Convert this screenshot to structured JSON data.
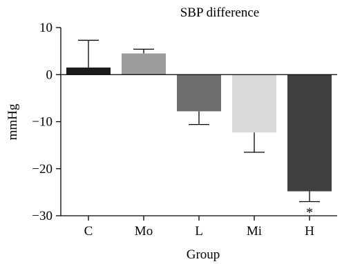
{
  "chart_data": {
    "type": "bar",
    "title": "SBP difference",
    "xlabel": "Group",
    "ylabel": "mmHg",
    "categories": [
      "C",
      "Mo",
      "L",
      "Mi",
      "H"
    ],
    "values": [
      1.5,
      4.5,
      -7.8,
      -12.3,
      -24.8
    ],
    "errors": [
      5.8,
      0.9,
      2.8,
      4.2,
      2.2
    ],
    "colors": [
      "#1a1a1a",
      "#9b9b9b",
      "#6e6e6e",
      "#d9d9d9",
      "#404040"
    ],
    "ylim": [
      -30,
      10
    ],
    "yticks": [
      -30,
      -20,
      -10,
      0,
      10
    ],
    "ytick_labels": [
      "−30",
      "−20",
      "−10",
      "0",
      "10"
    ],
    "annotations": [
      {
        "category": "H",
        "text": "*"
      }
    ],
    "grid": false,
    "legend": "none"
  }
}
